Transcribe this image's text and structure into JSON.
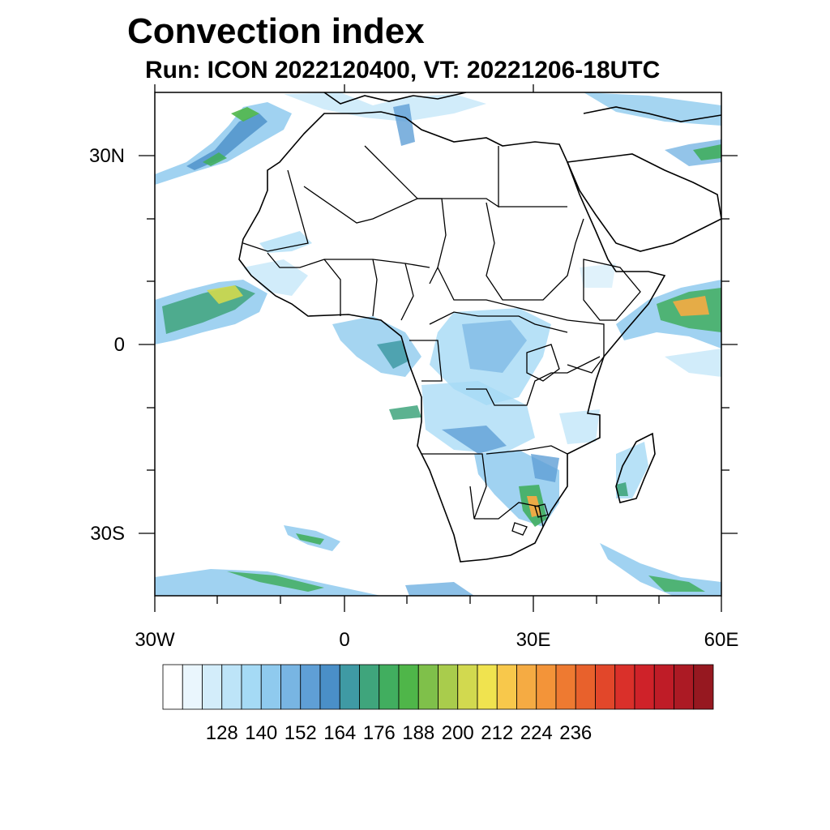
{
  "title": "Convection index",
  "subtitle": "Run: ICON 2022120400,  VT: 20221206-18UTC",
  "lat_labels": [
    "30N",
    "0",
    "30S"
  ],
  "lon_labels": [
    "30W",
    "0",
    "30E",
    "60E"
  ],
  "colorbar": {
    "labels": [
      "128",
      "140",
      "152",
      "164",
      "176",
      "188",
      "200",
      "212",
      "224",
      "236"
    ],
    "colors": [
      "#ffffff",
      "#eaf6fd",
      "#d3edfa",
      "#bde4f8",
      "#a5daf5",
      "#8fcaee",
      "#78b5e3",
      "#5f9fd6",
      "#4a8fc8",
      "#3f9aa4",
      "#3fa57c",
      "#41ae5f",
      "#4fb649",
      "#7fc04a",
      "#a9cc4c",
      "#d2d94f",
      "#f0e34f",
      "#f8c84b",
      "#f5ab43",
      "#f39439",
      "#ee7a31",
      "#e8612c",
      "#e2472a",
      "#da302a",
      "#cf2229",
      "#bf1c27",
      "#ac1a24",
      "#961820"
    ]
  },
  "map": {
    "lon_range": [
      -30,
      60
    ],
    "lat_range": [
      -40,
      40
    ],
    "coastline_color": "#000000"
  }
}
